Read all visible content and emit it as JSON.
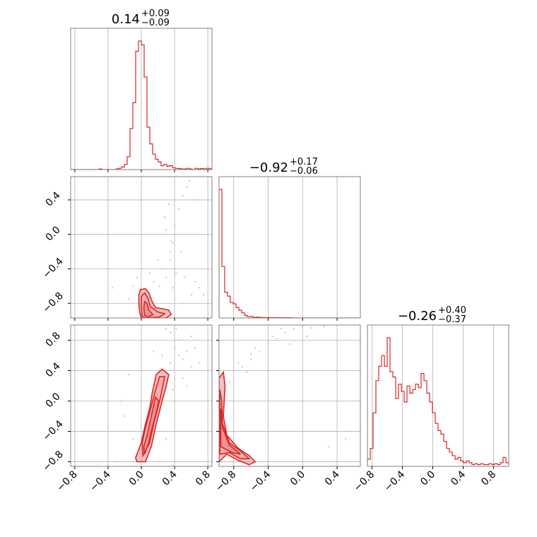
{
  "chart_data": {
    "type": "corner",
    "colors": {
      "series": "#d62728",
      "contour_fill": "#f4a3a4",
      "scatter": "#f2b8b9",
      "grid": "#b0b0b0",
      "frame": "#808080"
    },
    "grid": true,
    "parameters": [
      {
        "range": [
          -0.85,
          0.85
        ],
        "ticks": [
          -0.8,
          -0.4,
          0.0,
          0.4,
          0.8
        ],
        "tick_labels": [
          "−0.8",
          "−0.4",
          "0.0",
          "0.4",
          "0.8"
        ]
      },
      {
        "range": [
          -0.97,
          0.67
        ],
        "ticks": [
          -0.8,
          -0.4,
          0.0,
          0.4
        ],
        "tick_labels": [
          "−0.8",
          "−0.4",
          "0.0",
          "0.4"
        ]
      },
      {
        "range": [
          -0.86,
          1.0
        ],
        "ticks": [
          -0.8,
          -0.4,
          0.0,
          0.4,
          0.8
        ],
        "tick_labels": [
          "−0.8",
          "−0.4",
          "0.0",
          "0.4",
          "0.8"
        ]
      }
    ],
    "titles": [
      {
        "median": "0.14",
        "plus": "+0.09",
        "minus": "−0.09"
      },
      {
        "median": "−0.92",
        "plus": "+0.17",
        "minus": "−0.06"
      },
      {
        "median": "−0.26",
        "plus": "+0.40",
        "minus": "−0.37"
      }
    ],
    "histograms": [
      {
        "param": 0,
        "x_start": -0.85,
        "bin_width": 0.034,
        "values": [
          0,
          0,
          0,
          0,
          0,
          0,
          0,
          0,
          0,
          0,
          0.005,
          0,
          0,
          0,
          0,
          0,
          0.005,
          0.01,
          0.02,
          0.04,
          0.1,
          0.32,
          0.52,
          0.92,
          1.0,
          0.97,
          0.72,
          0.33,
          0.2,
          0.12,
          0.08,
          0.06,
          0.03,
          0.04,
          0.025,
          0.03,
          0.015,
          0.01,
          0.008,
          0.005,
          0.005,
          0.01,
          0.005,
          0,
          0.01,
          0.005,
          0.008,
          0.005,
          0.01,
          0.005
        ]
      },
      {
        "param": 1,
        "x_start": -0.97,
        "bin_width": 0.0328,
        "values": [
          1.0,
          0.4,
          0.2,
          0.17,
          0.12,
          0.11,
          0.08,
          0.06,
          0.04,
          0.02,
          0.01,
          0.012,
          0.005,
          0.006,
          0.005,
          0.004,
          0.004,
          0.004,
          0.003,
          0.003,
          0.003,
          0.002,
          0.002,
          0.002,
          0.002,
          0.002,
          0.001,
          0.001,
          0,
          0,
          0,
          0,
          0,
          0,
          0,
          0,
          0,
          0,
          0,
          0,
          0,
          0,
          0,
          0,
          0,
          0,
          0,
          0,
          0,
          0
        ]
      },
      {
        "param": 2,
        "x_start": -0.86,
        "bin_width": 0.0372,
        "values": [
          0.04,
          0.1,
          0.3,
          0.48,
          0.56,
          0.62,
          0.56,
          0.72,
          0.53,
          0.5,
          0.38,
          0.46,
          0.42,
          0.36,
          0.45,
          0.41,
          0.43,
          0.46,
          0.44,
          0.52,
          0.48,
          0.41,
          0.36,
          0.3,
          0.24,
          0.2,
          0.18,
          0.14,
          0.1,
          0.08,
          0.06,
          0.04,
          0.05,
          0.03,
          0.02,
          0.03,
          0.02,
          0.01,
          0.015,
          0.01,
          0.015,
          0.01,
          0.01,
          0.015,
          0.01,
          0.015,
          0.01,
          0.02,
          0.05,
          0.02
        ]
      }
    ],
    "pairs": [
      {
        "x_param": 0,
        "y_param": 1,
        "contour_outer": [
          [
            0.0,
            -0.97
          ],
          [
            -0.02,
            -0.9
          ],
          [
            -0.03,
            -0.8
          ],
          [
            -0.03,
            -0.7
          ],
          [
            -0.01,
            -0.64
          ],
          [
            0.05,
            -0.63
          ],
          [
            0.09,
            -0.68
          ],
          [
            0.13,
            -0.78
          ],
          [
            0.17,
            -0.85
          ],
          [
            0.24,
            -0.86
          ],
          [
            0.33,
            -0.88
          ],
          [
            0.36,
            -0.93
          ],
          [
            0.3,
            -0.97
          ],
          [
            0.1,
            -0.98
          ]
        ],
        "contour_mid": [
          [
            0.01,
            -0.95
          ],
          [
            0.0,
            -0.85
          ],
          [
            0.0,
            -0.72
          ],
          [
            0.04,
            -0.68
          ],
          [
            0.08,
            -0.74
          ],
          [
            0.11,
            -0.84
          ],
          [
            0.2,
            -0.9
          ],
          [
            0.28,
            -0.92
          ],
          [
            0.22,
            -0.96
          ],
          [
            0.05,
            -0.97
          ]
        ],
        "contour_inner": [
          [
            0.04,
            -0.94
          ],
          [
            0.03,
            -0.85
          ],
          [
            0.04,
            -0.78
          ],
          [
            0.07,
            -0.8
          ],
          [
            0.09,
            -0.88
          ],
          [
            0.14,
            -0.93
          ],
          [
            0.08,
            -0.96
          ]
        ],
        "scatter": [
          [
            0.22,
            -0.6
          ],
          [
            0.3,
            -0.5
          ],
          [
            0.35,
            -0.3
          ],
          [
            0.38,
            -0.1
          ],
          [
            0.4,
            0.1
          ],
          [
            0.45,
            0.3
          ],
          [
            0.5,
            0.45
          ],
          [
            0.55,
            0.55
          ],
          [
            0.62,
            0.4
          ],
          [
            0.3,
            0.05
          ],
          [
            0.25,
            -0.4
          ],
          [
            0.15,
            -0.55
          ],
          [
            -0.1,
            -0.6
          ],
          [
            -0.15,
            -0.75
          ],
          [
            0.6,
            -0.7
          ],
          [
            0.7,
            -0.62
          ],
          [
            0.4,
            -0.75
          ],
          [
            0.5,
            -0.8
          ],
          [
            0.35,
            -0.2
          ],
          [
            0.42,
            -0.45
          ],
          [
            -0.35,
            -0.62
          ],
          [
            0.28,
            0.2
          ],
          [
            0.45,
            0.0
          ],
          [
            0.2,
            -0.3
          ],
          [
            0.33,
            0.35
          ],
          [
            0.48,
            -0.2
          ],
          [
            0.52,
            -0.5
          ],
          [
            0.65,
            -0.55
          ],
          [
            0.38,
            -0.62
          ],
          [
            0.1,
            -0.45
          ],
          [
            0.58,
            0.62
          ],
          [
            0.36,
            -0.08
          ],
          [
            -0.05,
            -0.5
          ],
          [
            0.75,
            -0.7
          ]
        ]
      },
      {
        "x_param": 0,
        "y_param": 2,
        "contour_outer": [
          [
            -0.05,
            -0.8
          ],
          [
            0.05,
            -0.8
          ],
          [
            0.12,
            -0.6
          ],
          [
            0.18,
            -0.3
          ],
          [
            0.25,
            0.0
          ],
          [
            0.3,
            0.2
          ],
          [
            0.33,
            0.35
          ],
          [
            0.25,
            0.42
          ],
          [
            0.18,
            0.35
          ],
          [
            0.13,
            0.1
          ],
          [
            0.1,
            -0.1
          ],
          [
            0.05,
            -0.3
          ],
          [
            0.0,
            -0.55
          ],
          [
            -0.07,
            -0.75
          ]
        ],
        "contour_mid": [
          [
            0.02,
            -0.72
          ],
          [
            0.1,
            -0.55
          ],
          [
            0.15,
            -0.3
          ],
          [
            0.22,
            0.0
          ],
          [
            0.26,
            0.2
          ],
          [
            0.28,
            0.32
          ],
          [
            0.22,
            0.32
          ],
          [
            0.16,
            0.1
          ],
          [
            0.1,
            -0.15
          ],
          [
            0.05,
            -0.35
          ],
          [
            0.01,
            -0.55
          ]
        ],
        "contour_inner": [
          [
            0.04,
            -0.7
          ],
          [
            0.09,
            -0.55
          ],
          [
            0.12,
            -0.4
          ],
          [
            0.17,
            -0.2
          ],
          [
            0.21,
            0.0
          ],
          [
            0.17,
            0.05
          ],
          [
            0.12,
            -0.2
          ],
          [
            0.07,
            -0.45
          ],
          [
            0.03,
            -0.6
          ]
        ],
        "scatter": [
          [
            0.3,
            0.95
          ],
          [
            0.35,
            0.9
          ],
          [
            0.4,
            0.7
          ],
          [
            0.45,
            0.6
          ],
          [
            0.5,
            0.55
          ],
          [
            0.55,
            0.65
          ],
          [
            0.6,
            0.45
          ],
          [
            0.35,
            0.5
          ],
          [
            0.4,
            0.3
          ],
          [
            -0.1,
            -0.5
          ],
          [
            -0.2,
            -0.2
          ],
          [
            -0.3,
            -0.8
          ],
          [
            0.25,
            0.6
          ],
          [
            0.5,
            0.3
          ],
          [
            0.45,
            0.8
          ],
          [
            -0.25,
            0.0
          ],
          [
            -0.4,
            -0.35
          ],
          [
            0.15,
            0.65
          ],
          [
            0.6,
            0.85
          ],
          [
            0.3,
            -0.5
          ],
          [
            0.55,
            0.2
          ],
          [
            0.7,
            0.5
          ],
          [
            -0.15,
            0.35
          ],
          [
            0.42,
            0.95
          ],
          [
            0.65,
            0.7
          ],
          [
            0.38,
            0.15
          ]
        ]
      },
      {
        "x_param": 1,
        "y_param": 2,
        "contour_outer": [
          [
            -0.97,
            -0.8
          ],
          [
            -0.97,
            0.3
          ],
          [
            -0.92,
            0.38
          ],
          [
            -0.9,
            0.2
          ],
          [
            -0.92,
            -0.2
          ],
          [
            -0.88,
            -0.45
          ],
          [
            -0.75,
            -0.62
          ],
          [
            -0.62,
            -0.72
          ],
          [
            -0.55,
            -0.8
          ],
          [
            -0.62,
            -0.84
          ],
          [
            -0.75,
            -0.78
          ],
          [
            -0.88,
            -0.7
          ]
        ],
        "contour_mid": [
          [
            -0.96,
            -0.7
          ],
          [
            -0.96,
            0.15
          ],
          [
            -0.94,
            0.0
          ],
          [
            -0.93,
            -0.3
          ],
          [
            -0.85,
            -0.55
          ],
          [
            -0.72,
            -0.66
          ],
          [
            -0.62,
            -0.76
          ],
          [
            -0.72,
            -0.76
          ],
          [
            -0.85,
            -0.68
          ]
        ],
        "contour_inner": [
          [
            -0.95,
            -0.6
          ],
          [
            -0.95,
            -0.1
          ],
          [
            -0.93,
            -0.35
          ],
          [
            -0.85,
            -0.58
          ],
          [
            -0.72,
            -0.7
          ],
          [
            -0.82,
            -0.68
          ]
        ],
        "scatter": [
          [
            -0.9,
            0.2
          ],
          [
            -0.8,
            0.3
          ],
          [
            -0.7,
            0.45
          ],
          [
            -0.6,
            0.55
          ],
          [
            -0.5,
            0.65
          ],
          [
            -0.4,
            0.75
          ],
          [
            -0.3,
            0.82
          ],
          [
            -0.2,
            0.9
          ],
          [
            -0.1,
            0.95
          ],
          [
            0.0,
            0.98
          ],
          [
            0.1,
            0.96
          ],
          [
            -0.75,
            0.5
          ],
          [
            -0.55,
            0.7
          ],
          [
            -0.35,
            0.85
          ],
          [
            -0.65,
            0.38
          ],
          [
            -0.85,
            0.25
          ],
          [
            -0.45,
            -0.9
          ],
          [
            -0.4,
            -0.85
          ],
          [
            0.3,
            -0.6
          ],
          [
            0.25,
            0.98
          ],
          [
            -0.15,
            0.75
          ],
          [
            -0.6,
            0.62
          ],
          [
            0.05,
            0.85
          ],
          [
            -0.25,
            0.95
          ],
          [
            0.5,
            -0.5
          ]
        ]
      }
    ]
  }
}
